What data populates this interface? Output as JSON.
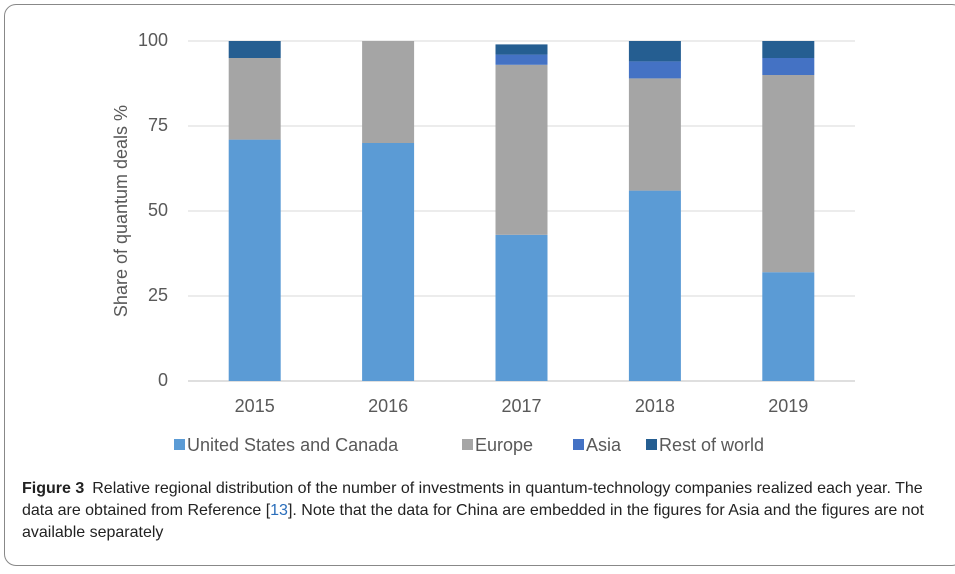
{
  "chart_data": {
    "type": "stacked_bar",
    "y_label": "Share of quantum deals %",
    "categories": [
      "2015",
      "2016",
      "2017",
      "2018",
      "2019"
    ],
    "series": [
      {
        "name": "United States and Canada",
        "color": "#5b9bd5",
        "values": [
          71,
          70,
          43,
          56,
          32
        ]
      },
      {
        "name": "Europe",
        "color": "#a5a5a5",
        "values": [
          24,
          30,
          50,
          33,
          58
        ]
      },
      {
        "name": "Asia",
        "color": "#4472c4",
        "values": [
          0,
          0,
          3,
          5,
          5
        ]
      },
      {
        "name": "Rest of world",
        "color": "#255e91",
        "values": [
          5,
          0,
          3,
          6,
          5
        ]
      }
    ],
    "ylim": [
      0,
      100
    ],
    "yticks": [
      0,
      25,
      50,
      75,
      100
    ],
    "grid": true,
    "legend": "bottom"
  },
  "caption": {
    "label": "Figure 3",
    "text_before": "Relative regional distribution of the number of investments in quantum-technology companies realized each year. The data are obtained from Reference [",
    "ref": "13",
    "text_after": "]. Note that the data for China are embedded in the figures for Asia and the figures are not available separately"
  }
}
